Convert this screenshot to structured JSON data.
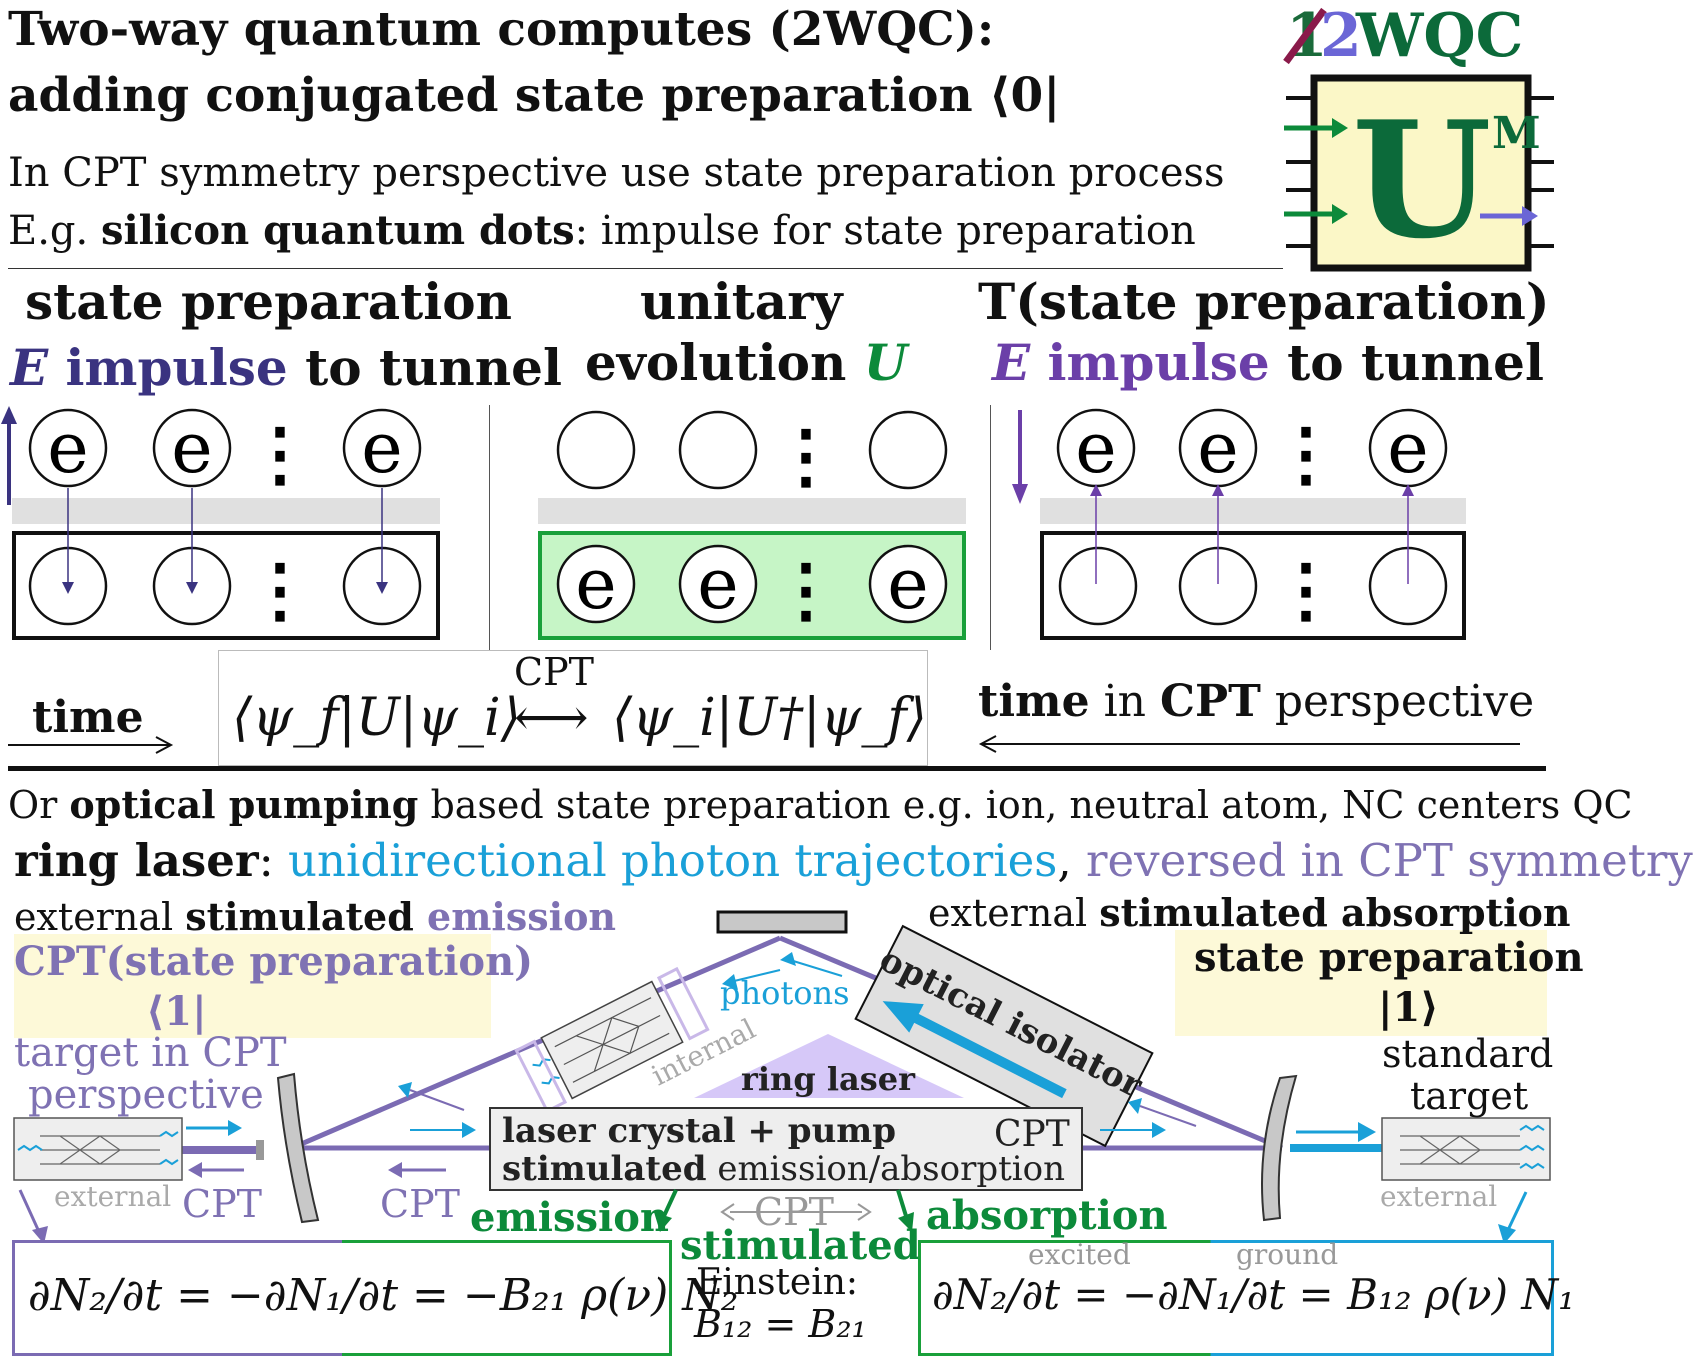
{
  "header": {
    "title_line1": "Two-way quantum computes (2WQC):",
    "title_line2": "adding conjugated state preparation ⟨0|",
    "line3": "In CPT symmetry perspective use state preparation process",
    "line4_prefix": "E.g. ",
    "line4_bold": "silicon quantum dots",
    "line4_rest": ": impulse for state preparation"
  },
  "logo": {
    "crossed_digit": "1",
    "digit": "2",
    "letters": "WQC",
    "u_letter": "U",
    "m_letter": "M"
  },
  "panels": {
    "left": {
      "title1": "state preparation",
      "title2_e": "E",
      "title2_word": "impulse",
      "title2_rest": " to tunnel"
    },
    "middle": {
      "title1": "unitary",
      "title2": "evolution ",
      "title2_u": "U"
    },
    "right": {
      "title1": "T(state preparation)",
      "title2_e": "E",
      "title2_word": "impulse",
      "title2_rest": " to tunnel"
    },
    "electron": "e",
    "dots": "⋮"
  },
  "time_row": {
    "left": "time",
    "cpt": "CPT",
    "formula_left": "⟨ψ_f|U|ψ_i⟩",
    "formula_arrow": "⟷",
    "formula_right": "⟨ψ_i|U†|ψ_f⟩",
    "right_time": "time",
    "right_in": " in ",
    "right_cpt": "CPT",
    "right_rest": " perspective"
  },
  "optical": {
    "line1_prefix": "Or ",
    "line1_bold": "optical pumping",
    "line1_rest": " based state preparation e.g. ion, neutral atom, NC centers QC",
    "line2_bold": "ring laser",
    "line2_colon": ": ",
    "line2_cyan": "unidirectional photon trajectories",
    "line2_comma": ", ",
    "line2_lav": "reversed in CPT symmetry"
  },
  "laser": {
    "ext_emission_prefix": "external ",
    "ext_emission_bold": "stimulated",
    "ext_emission_word": " emission",
    "cpt_state_prep": "CPT(state preparation)",
    "bra_one": "⟨1|",
    "target_cpt_1": "target in CPT",
    "target_cpt_2": "perspective",
    "ext_absorption_prefix": "external ",
    "ext_absorption_bold": "stimulated absorption",
    "state_prep": "state preparation",
    "ket_one": "|1⟩",
    "standard_1": "standard",
    "standard_2": "target",
    "photons": "photons",
    "optical_isolator": "optical isolator",
    "internal": "internal",
    "ring_laser": "ring laser",
    "crystal_1": "laser crystal + pump",
    "crystal_2_bold": "stimulated",
    "crystal_2_rest": " emission/absorption",
    "crystal_cpt": "CPT",
    "external_left": "external",
    "external_right": "external",
    "cpt_left1": "CPT",
    "cpt_left2": "CPT",
    "emission": "emission",
    "absorption": "absorption",
    "cpt_mid": "CPT",
    "stimulated": "stimulated",
    "einstein": "Einstein:",
    "einstein_eq": "B₁₂ = B₂₁",
    "eq_left": "∂N₂/∂t = −∂N₁/∂t = −B₂₁ ρ(ν) N₂",
    "eq_right": "∂N₂/∂t = −∂N₁/∂t = B₁₂ ρ(ν) N₁",
    "excited": "excited",
    "ground": "ground"
  }
}
